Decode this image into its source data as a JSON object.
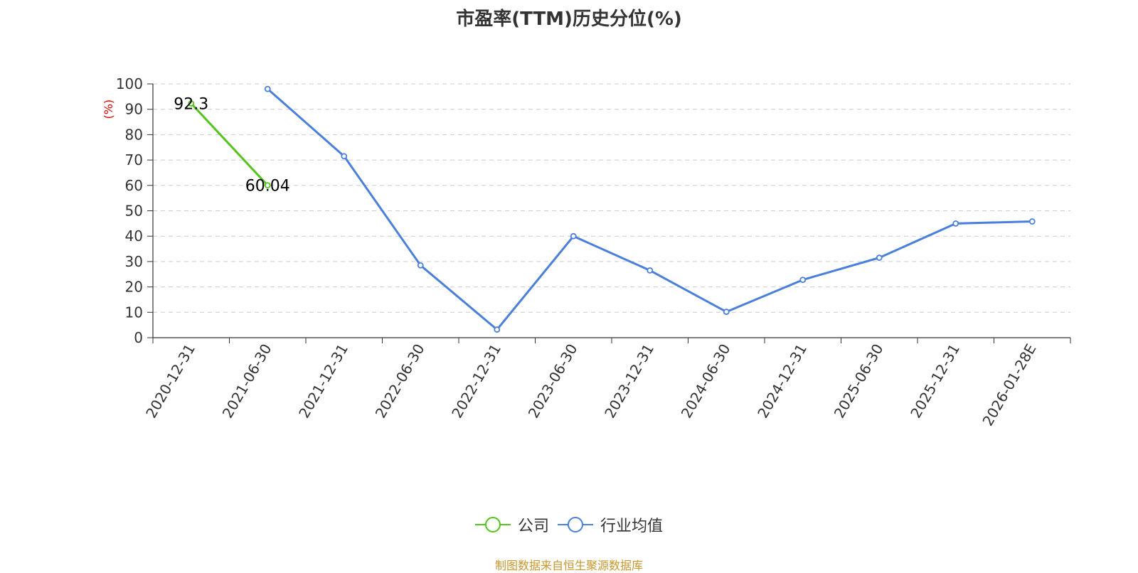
{
  "chart_data": {
    "type": "line",
    "title": "市盈率(TTM)历史分位(%)",
    "ylabel": "(%)",
    "ylim": [
      0,
      100
    ],
    "yticks": [
      0,
      10,
      20,
      30,
      40,
      50,
      60,
      70,
      80,
      90,
      100
    ],
    "grid": true,
    "legend_position": "bottom-center",
    "categories": [
      "2020-12-31",
      "2021-06-30",
      "2021-12-31",
      "2022-06-30",
      "2022-12-31",
      "2023-06-30",
      "2023-12-31",
      "2024-06-30",
      "2024-12-31",
      "2025-06-30",
      "2025-12-31",
      "2026-01-28E"
    ],
    "series": [
      {
        "name": "公司",
        "color": "#52c41a",
        "values": [
          92.3,
          60.04,
          null,
          null,
          null,
          null,
          null,
          null,
          null,
          null,
          null,
          null
        ],
        "data_labels": [
          "92.3",
          "60.04"
        ]
      },
      {
        "name": "行业均值",
        "color": "#4a7fdc",
        "values": [
          null,
          98,
          71.5,
          28.5,
          3.2,
          40,
          26.5,
          10.2,
          22.8,
          31.5,
          45,
          45.8
        ]
      }
    ]
  },
  "source_note": "制图数据来自恒生聚源数据库",
  "source_color": "#c8962e",
  "ylabel_color": "#e00000"
}
